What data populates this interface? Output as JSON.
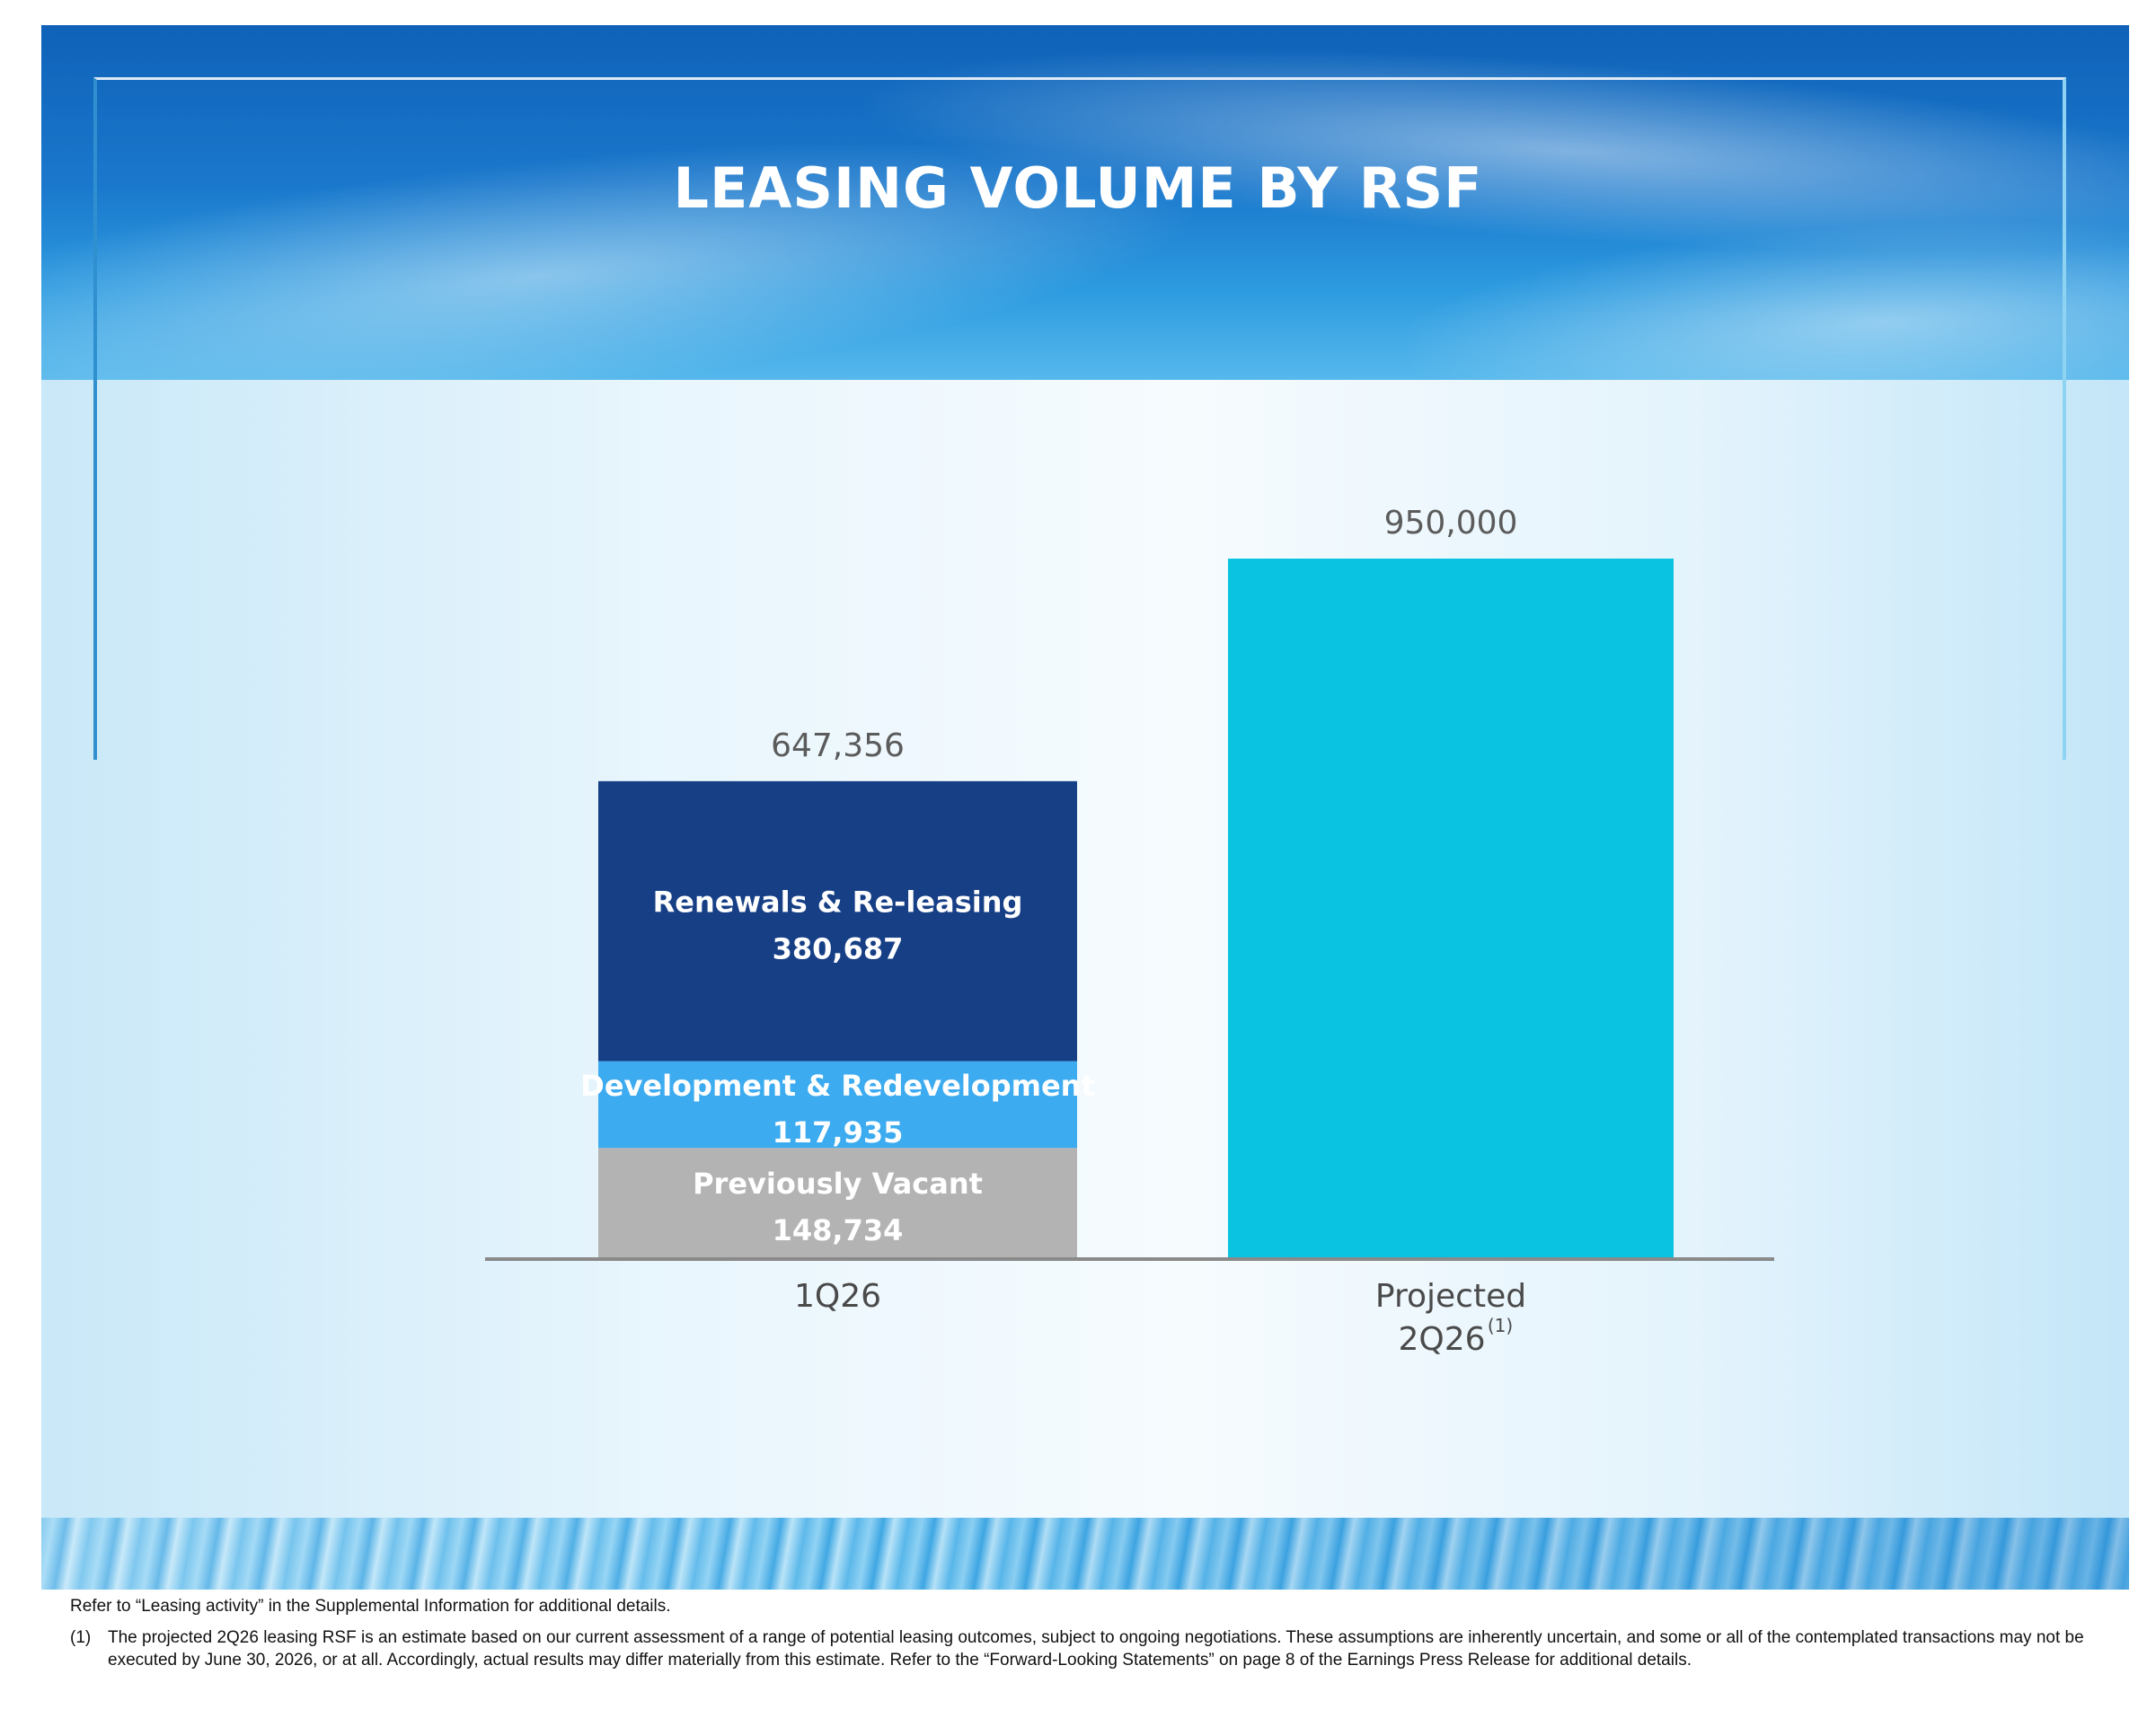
{
  "colors": {
    "renewals": "#173f86",
    "development": "#3cabf0",
    "vacant": "#b3b3b3",
    "projected": "#0ac3e1",
    "axis": "#8a8a8a",
    "total_label": "#5b5b5b",
    "category_label": "#4a4a4a"
  },
  "chart_data": {
    "type": "bar",
    "title": "LEASING VOLUME BY RSF",
    "xlabel": "",
    "ylabel": "",
    "ylim": [
      0,
      1000000
    ],
    "grid": false,
    "categories": [
      "1Q26",
      "Projected 2Q26"
    ],
    "bars": [
      {
        "category": "1Q26",
        "total": 647356,
        "total_label": "647,356",
        "segments": [
          {
            "name": "Previously Vacant",
            "value": 148734,
            "value_label": "148,734",
            "color_key": "vacant"
          },
          {
            "name": "Development & Redevelopment",
            "value": 117935,
            "value_label": "117,935",
            "color_key": "development"
          },
          {
            "name": "Renewals & Re-leasing",
            "value": 380687,
            "value_label": "380,687",
            "color_key": "renewals"
          }
        ],
        "label_lines": [
          "1Q26"
        ],
        "footnote_marker": ""
      },
      {
        "category": "Projected 2Q26",
        "total": 950000,
        "total_label": "950,000",
        "segments": [
          {
            "name": "Projected",
            "value": 950000,
            "value_label": "",
            "color_key": "projected"
          }
        ],
        "label_lines": [
          "Projected",
          "2Q26"
        ],
        "footnote_marker": "(1)"
      }
    ]
  },
  "footnotes": {
    "reference": "Refer to “Leasing activity” in the Supplemental Information for additional details.",
    "note_1_marker": "(1)",
    "note_1_text": "The projected 2Q26 leasing RSF is an estimate based on our current assessment of a range of potential leasing outcomes, subject to ongoing negotiations. These assumptions are inherently uncertain, and some or all of the contemplated transactions may not be executed by June 30, 2026, or at all. Accordingly, actual results may differ materially from this estimate. Refer to the “Forward-Looking Statements” on page 8 of the Earnings Press Release for additional details."
  }
}
